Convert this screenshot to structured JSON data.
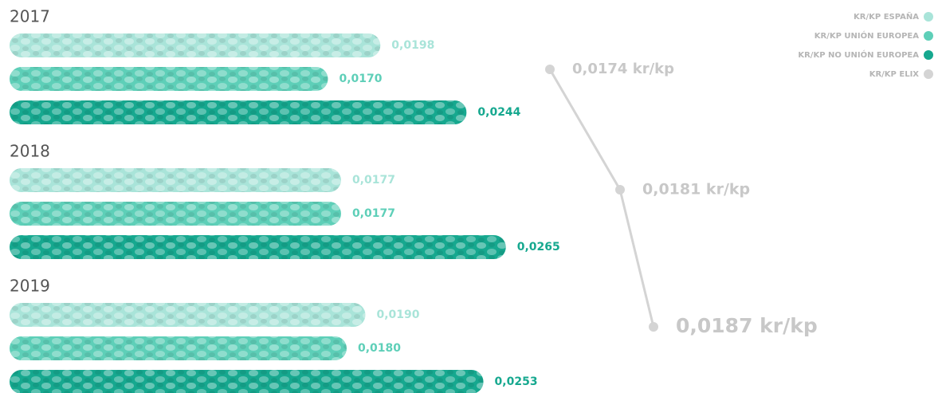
{
  "chart_data": [
    {
      "type": "bar",
      "categories": [
        "2017",
        "2018",
        "2019"
      ],
      "series": [
        {
          "name": "KR/KP ESPAÑA",
          "color": "#a9e4d9",
          "values": [
            0.0198,
            0.0177,
            0.019
          ],
          "value_labels": [
            "0,0198",
            "0,0177",
            "0,0190"
          ]
        },
        {
          "name": "KR/KP UNIÓN EUROPEA",
          "color": "#5ecfb8",
          "values": [
            0.017,
            0.0177,
            0.018
          ],
          "value_labels": [
            "0,0170",
            "0,0177",
            "0,0180"
          ]
        },
        {
          "name": "KR/KP NO UNIÓN EUROPEA",
          "color": "#16a88f",
          "values": [
            0.0244,
            0.0265,
            0.0253
          ],
          "value_labels": [
            "0,0244",
            "0,0265",
            "0,0253"
          ]
        }
      ]
    },
    {
      "type": "line",
      "series": [
        {
          "name": "KR/KP ELIX",
          "color": "#d4d4d4",
          "values": [
            0.0174,
            0.0181,
            0.0187
          ],
          "value_labels": [
            "0,0174 kr/kp",
            "0,0181 kr/kp",
            "0,0187 kr/kp"
          ]
        }
      ]
    }
  ]
}
